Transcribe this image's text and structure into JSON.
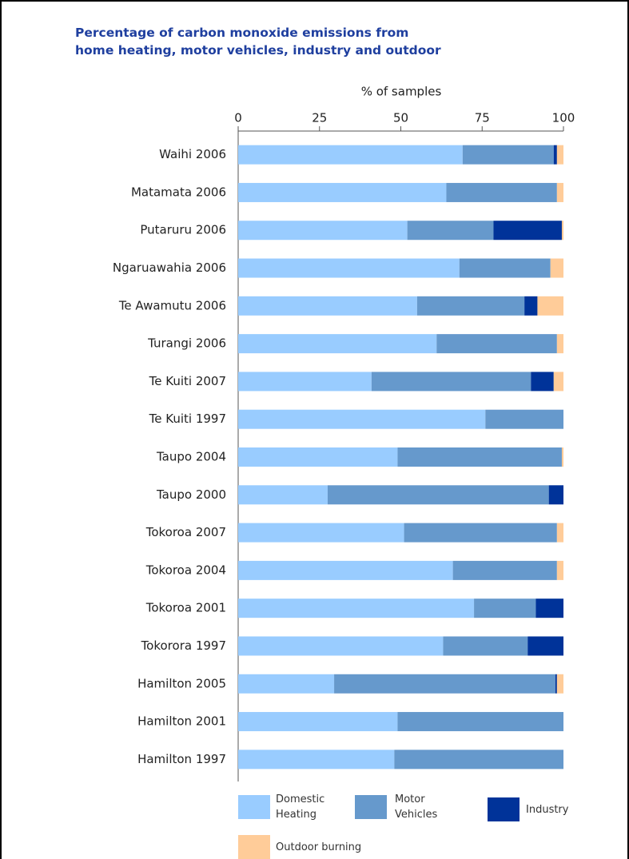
{
  "chart_data": {
    "type": "stacked-bar-horizontal",
    "title": [
      "Percentage of carbon monoxide emissions from",
      "home heating, motor vehicles, industry and outdoor"
    ],
    "x_label": "% of samples",
    "categories": [
      "Waihi 2006",
      "Matamata 2006",
      "Putaruru 2006",
      "Ngaruawahia 2006",
      "Te Awamutu 2006",
      "Turangi 2006",
      "Te Kuiti 2007",
      "Te Kuiti 1997",
      "Taupo 2004",
      "Taupo 2000",
      "Tokoroa 2007",
      "Tokoroa 2004",
      "Tokoroa 2001",
      "Tokorora 1997",
      "Hamilton 2005",
      "Hamilton 2001",
      "Hamilton 1997"
    ],
    "series": [
      {
        "name": "Domestic Heating",
        "color": "#99ccff",
        "values": [
          69,
          64,
          52,
          68,
          55,
          61,
          41,
          76,
          49,
          27.5,
          51,
          66,
          72.5,
          63,
          29.5,
          49,
          48
        ]
      },
      {
        "name": "Motor Vehicles",
        "color": "#6699cc",
        "values": [
          28,
          34,
          26.5,
          28,
          33,
          37,
          49,
          24,
          50.5,
          68,
          47,
          32,
          19,
          26,
          68,
          51,
          52
        ]
      },
      {
        "name": "Industry",
        "color": "#003399",
        "values": [
          1,
          0,
          21,
          0,
          4,
          0,
          7,
          0,
          0,
          4.5,
          0,
          0,
          8.5,
          11,
          0.5,
          0,
          0
        ]
      },
      {
        "name": "Outdoor burning",
        "color": "#ffcc99",
        "values": [
          2,
          2,
          0.5,
          4,
          8,
          2,
          3,
          0,
          0.5,
          0,
          2,
          2,
          0,
          0,
          2,
          0,
          0
        ]
      }
    ],
    "xlim": [
      0,
      100
    ],
    "xticks": [
      0,
      25,
      50,
      75,
      100
    ]
  }
}
